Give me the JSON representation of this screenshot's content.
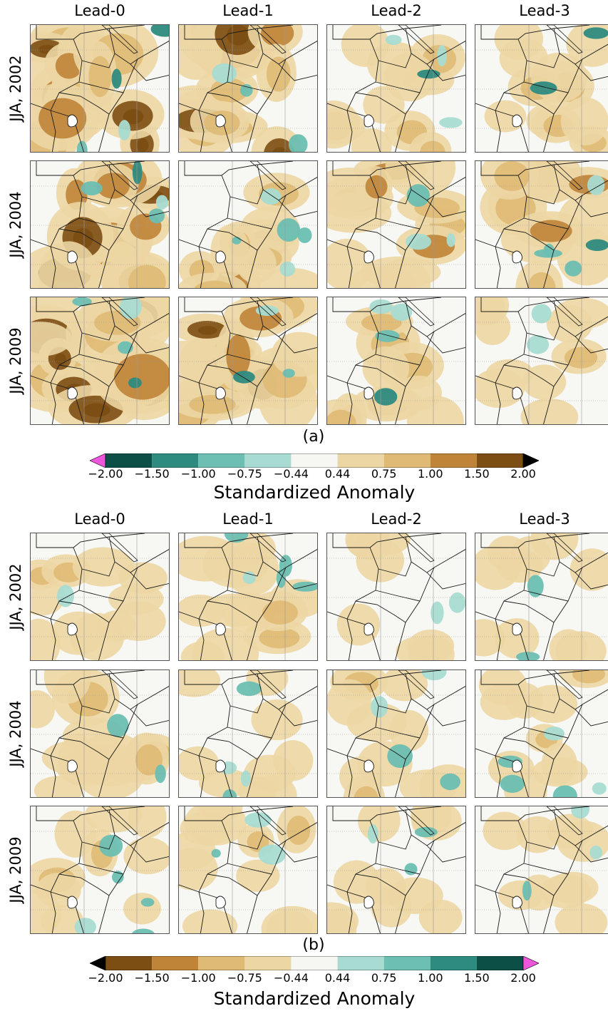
{
  "panels": [
    {
      "id": "a",
      "caption": "(a)",
      "columns": [
        "Lead-0",
        "Lead-1",
        "Lead-2",
        "Lead-3"
      ],
      "rows": [
        "JJA, 2002",
        "JJA, 2004",
        "JJA, 2009"
      ],
      "colorbar": {
        "ticks": [
          "−2.00",
          "−1.50",
          "−1.00",
          "−0.75",
          "−0.44",
          "0.44",
          "0.75",
          "1.00",
          "1.50",
          "2.00"
        ],
        "title": "Standardized Anomaly",
        "colors": [
          "#ee55dd",
          "#0b4f47",
          "#2e8b80",
          "#6cbfb2",
          "#a8dcd2",
          "#f6f6f3",
          "#ecd6a3",
          "#dfba74",
          "#bf8437",
          "#7c4e13",
          "#000000"
        ],
        "orientation": "green-negative"
      },
      "intensity": [
        [
          0.85,
          0.9,
          0.45,
          0.45
        ],
        [
          0.95,
          0.55,
          0.7,
          0.6
        ],
        [
          1.0,
          0.95,
          0.5,
          0.35
        ]
      ]
    },
    {
      "id": "b",
      "caption": "(b)",
      "columns": [
        "Lead-0",
        "Lead-1",
        "Lead-2",
        "Lead-3"
      ],
      "rows": [
        "JJA, 2002",
        "JJA, 2004",
        "JJA, 2009"
      ],
      "colorbar": {
        "ticks": [
          "−2.00",
          "−1.50",
          "−1.00",
          "−0.75",
          "−0.44",
          "0.44",
          "0.75",
          "1.00",
          "1.50",
          "2.00"
        ],
        "title": "Standardized Anomaly",
        "colors": [
          "#000000",
          "#7c4e13",
          "#bf8437",
          "#dfba74",
          "#ecd6a3",
          "#f6f6f3",
          "#a8dcd2",
          "#6cbfb2",
          "#2e8b80",
          "#0b4f47",
          "#ee55dd"
        ],
        "orientation": "brown-negative"
      },
      "intensity": [
        [
          0.5,
          0.55,
          0.3,
          0.35
        ],
        [
          0.65,
          0.3,
          0.4,
          0.35
        ],
        [
          0.4,
          0.45,
          0.35,
          0.3
        ]
      ]
    }
  ]
}
